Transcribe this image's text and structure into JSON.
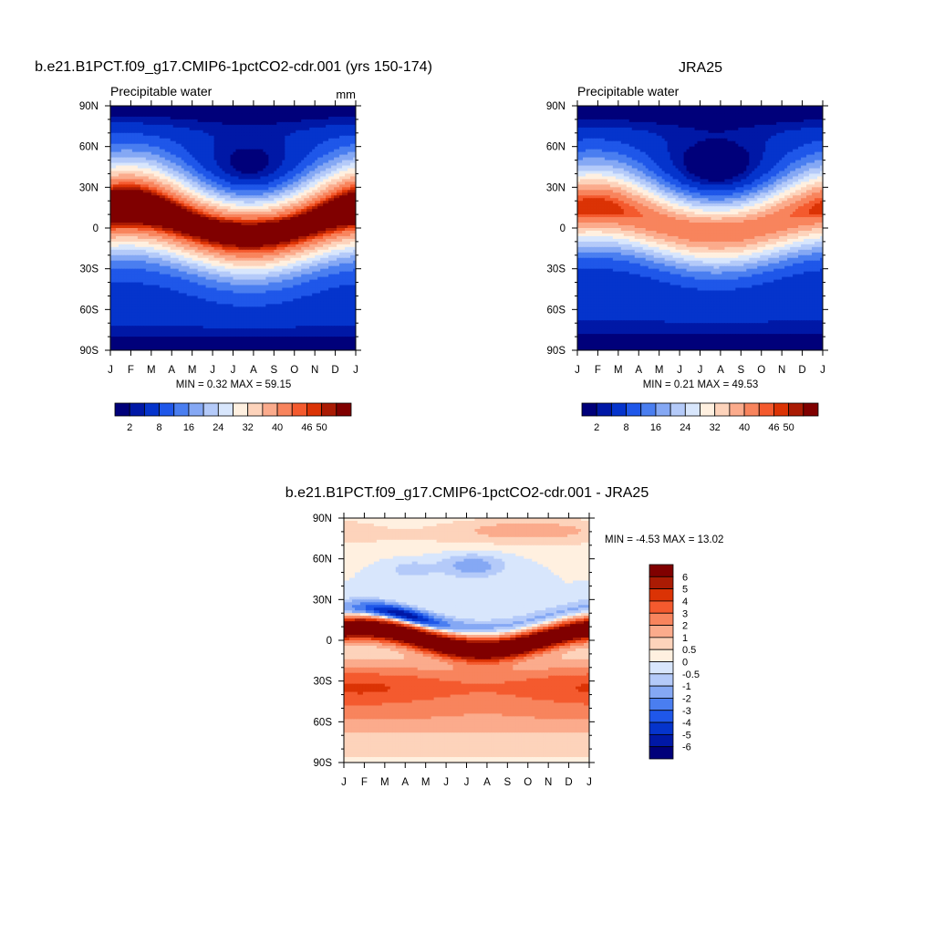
{
  "chart_data": [
    {
      "type": "heatmap",
      "id": "model",
      "title": "b.e21.B1PCT.f09_g17.CMIP6-1pctCO2-cdr.001 (yrs 150-174)",
      "subtitle_left": "Precipitable water",
      "units": "mm",
      "x_ticks": [
        "J",
        "F",
        "M",
        "A",
        "M",
        "J",
        "J",
        "A",
        "S",
        "O",
        "N",
        "D",
        "J"
      ],
      "y_ticks": [
        "90N",
        "60N",
        "30N",
        "0",
        "30S",
        "60S",
        "90S"
      ],
      "stats_text": "MIN =   0.32 MAX =  59.15",
      "min": 0.32,
      "max": 59.15,
      "colorbar_labels": [
        "2",
        "8",
        "16",
        "24",
        "32",
        "40",
        "46",
        "50"
      ],
      "levels": [
        2,
        4,
        8,
        12,
        16,
        20,
        24,
        28,
        32,
        36,
        40,
        44,
        46,
        48,
        50
      ],
      "colors": [
        "#00007a",
        "#0018a6",
        "#0534cc",
        "#1f57e9",
        "#4a7ef0",
        "#85a8f4",
        "#b4caf9",
        "#d8e6fc",
        "#fff0e0",
        "#fdd3bb",
        "#fbab8c",
        "#f8845d",
        "#f45a2e",
        "#db3305",
        "#aa1b04",
        "#800000"
      ]
    },
    {
      "type": "heatmap",
      "id": "obs",
      "title": "JRA25",
      "subtitle_left": "Precipitable water",
      "x_ticks": [
        "J",
        "F",
        "M",
        "A",
        "M",
        "J",
        "J",
        "A",
        "S",
        "O",
        "N",
        "D",
        "J"
      ],
      "y_ticks": [
        "90N",
        "60N",
        "30N",
        "0",
        "30S",
        "60S",
        "90S"
      ],
      "stats_text": "MIN =   0.21 MAX =  49.53",
      "min": 0.21,
      "max": 49.53,
      "colorbar_labels": [
        "2",
        "8",
        "16",
        "24",
        "32",
        "40",
        "46",
        "50"
      ]
    },
    {
      "type": "heatmap",
      "id": "diff",
      "title": "b.e21.B1PCT.f09_g17.CMIP6-1pctCO2-cdr.001 - JRA25",
      "x_ticks": [
        "J",
        "F",
        "M",
        "A",
        "M",
        "J",
        "J",
        "A",
        "S",
        "O",
        "N",
        "D",
        "J"
      ],
      "y_ticks": [
        "90N",
        "60N",
        "30N",
        "0",
        "30S",
        "60S",
        "90S"
      ],
      "stats_text": "MIN =  -4.53 MAX =  13.02",
      "min": -4.53,
      "max": 13.02,
      "colorbar_labels": [
        "6",
        "5",
        "4",
        "3",
        "2",
        "1",
        "0.5",
        "0",
        "-0.5",
        "-1",
        "-2",
        "-3",
        "-4",
        "-5",
        "-6"
      ],
      "levels": [
        -6,
        -5,
        -4,
        -3,
        -2,
        -1,
        -0.5,
        0,
        0.5,
        1,
        2,
        3,
        4,
        5,
        6
      ],
      "colors": [
        "#00007a",
        "#0018a6",
        "#0534cc",
        "#1f57e9",
        "#4a7ef0",
        "#85a8f4",
        "#b4caf9",
        "#d8e6fc",
        "#fff0e0",
        "#fdd3bb",
        "#fbab8c",
        "#f8845d",
        "#f45a2e",
        "#db3305",
        "#aa1b04",
        "#800000"
      ]
    }
  ]
}
